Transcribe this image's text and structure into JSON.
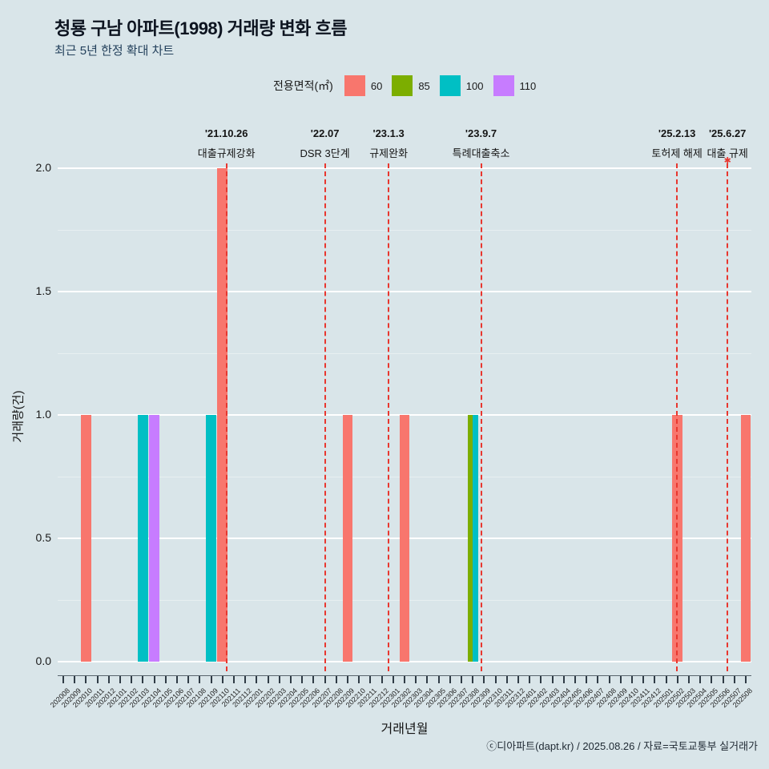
{
  "title": "청룡 구남 아파트(1998) 거래량 변화 흐름",
  "subtitle": "최근 5년 한정 확대 차트",
  "legend": {
    "title": "전용면적(㎡)",
    "items": [
      {
        "label": "60",
        "color": "#F8766D"
      },
      {
        "label": "85",
        "color": "#7CAE00"
      },
      {
        "label": "100",
        "color": "#00BFC4"
      },
      {
        "label": "110",
        "color": "#C77CFF"
      }
    ]
  },
  "chart_data": {
    "type": "bar",
    "title": "청룡 구남 아파트(1998) 거래량 변화 흐름",
    "xlabel": "거래년월",
    "ylabel": "거래량(건)",
    "ylim": [
      0,
      2.0
    ],
    "yticks": [
      0.0,
      0.5,
      1.0,
      1.5,
      2.0
    ],
    "yticks_minor": [
      0.25,
      0.75,
      1.25,
      1.75
    ],
    "grid": true,
    "legend_position": "top",
    "categories": [
      "202008",
      "202009",
      "202010",
      "202011",
      "202012",
      "202101",
      "202102",
      "202103",
      "202104",
      "202105",
      "202106",
      "202107",
      "202108",
      "202109",
      "202110",
      "202111",
      "202112",
      "202201",
      "202202",
      "202203",
      "202204",
      "202205",
      "202206",
      "202207",
      "202208",
      "202209",
      "202210",
      "202211",
      "202212",
      "202301",
      "202302",
      "202303",
      "202304",
      "202305",
      "202306",
      "202307",
      "202308",
      "202309",
      "202310",
      "202311",
      "202312",
      "202401",
      "202402",
      "202403",
      "202404",
      "202405",
      "202406",
      "202407",
      "202408",
      "202409",
      "202410",
      "202411",
      "202412",
      "202501",
      "202502",
      "202503",
      "202504",
      "202505",
      "202506",
      "202507",
      "202508"
    ],
    "series": [
      {
        "name": "60",
        "color": "#F8766D",
        "points": [
          {
            "month": "202010",
            "value": 1,
            "offset": 0,
            "width": 0.9
          },
          {
            "month": "202110",
            "value": 2,
            "offset": 0,
            "width": 0.9
          },
          {
            "month": "202209",
            "value": 1,
            "offset": 0,
            "width": 0.9
          },
          {
            "month": "202302",
            "value": 1,
            "offset": 0,
            "width": 0.9
          },
          {
            "month": "202502",
            "value": 1,
            "offset": 0,
            "width": 0.9
          },
          {
            "month": "202508",
            "value": 1,
            "offset": 0,
            "width": 0.9
          }
        ]
      },
      {
        "name": "85",
        "color": "#7CAE00",
        "points": [
          {
            "month": "202308",
            "value": 1,
            "offset": -0.225,
            "width": 0.45
          }
        ]
      },
      {
        "name": "100",
        "color": "#00BFC4",
        "points": [
          {
            "month": "202103",
            "value": 1,
            "offset": 0,
            "width": 0.9
          },
          {
            "month": "202109",
            "value": 1,
            "offset": 0,
            "width": 0.9
          },
          {
            "month": "202308",
            "value": 1,
            "offset": 0.225,
            "width": 0.45
          }
        ]
      },
      {
        "name": "110",
        "color": "#C77CFF",
        "points": [
          {
            "month": "202104",
            "value": 1,
            "offset": 0,
            "width": 0.9
          }
        ]
      }
    ],
    "event_lines": [
      {
        "date": "'21.10.26",
        "label": "대출규제강화",
        "pos": 14.84,
        "star": false
      },
      {
        "date": "'22.07",
        "label": "DSR 3단계",
        "pos": 23.5,
        "star": false
      },
      {
        "date": "'23.1.3",
        "label": "규제완화",
        "pos": 29.1,
        "star": false
      },
      {
        "date": "'23.9.7",
        "label": "특례대출축소",
        "pos": 37.23,
        "star": false
      },
      {
        "date": "'25.2.13",
        "label": "토허제 해제",
        "pos": 54.46,
        "star": false
      },
      {
        "date": "'25.6.27",
        "label": "대출 규제",
        "pos": 58.9,
        "star": true
      }
    ]
  },
  "footer": "ⓒ디아파트(dapt.kr) / 2025.08.26 / 자료=국토교통부 실거래가",
  "colors": {
    "background": "#d9e5e9",
    "grid": "#ffffff",
    "event_line": "#e8372f",
    "axis_text": "#1a1a1a",
    "title_text": "#0d1420",
    "subtitle_text": "#24415c"
  }
}
